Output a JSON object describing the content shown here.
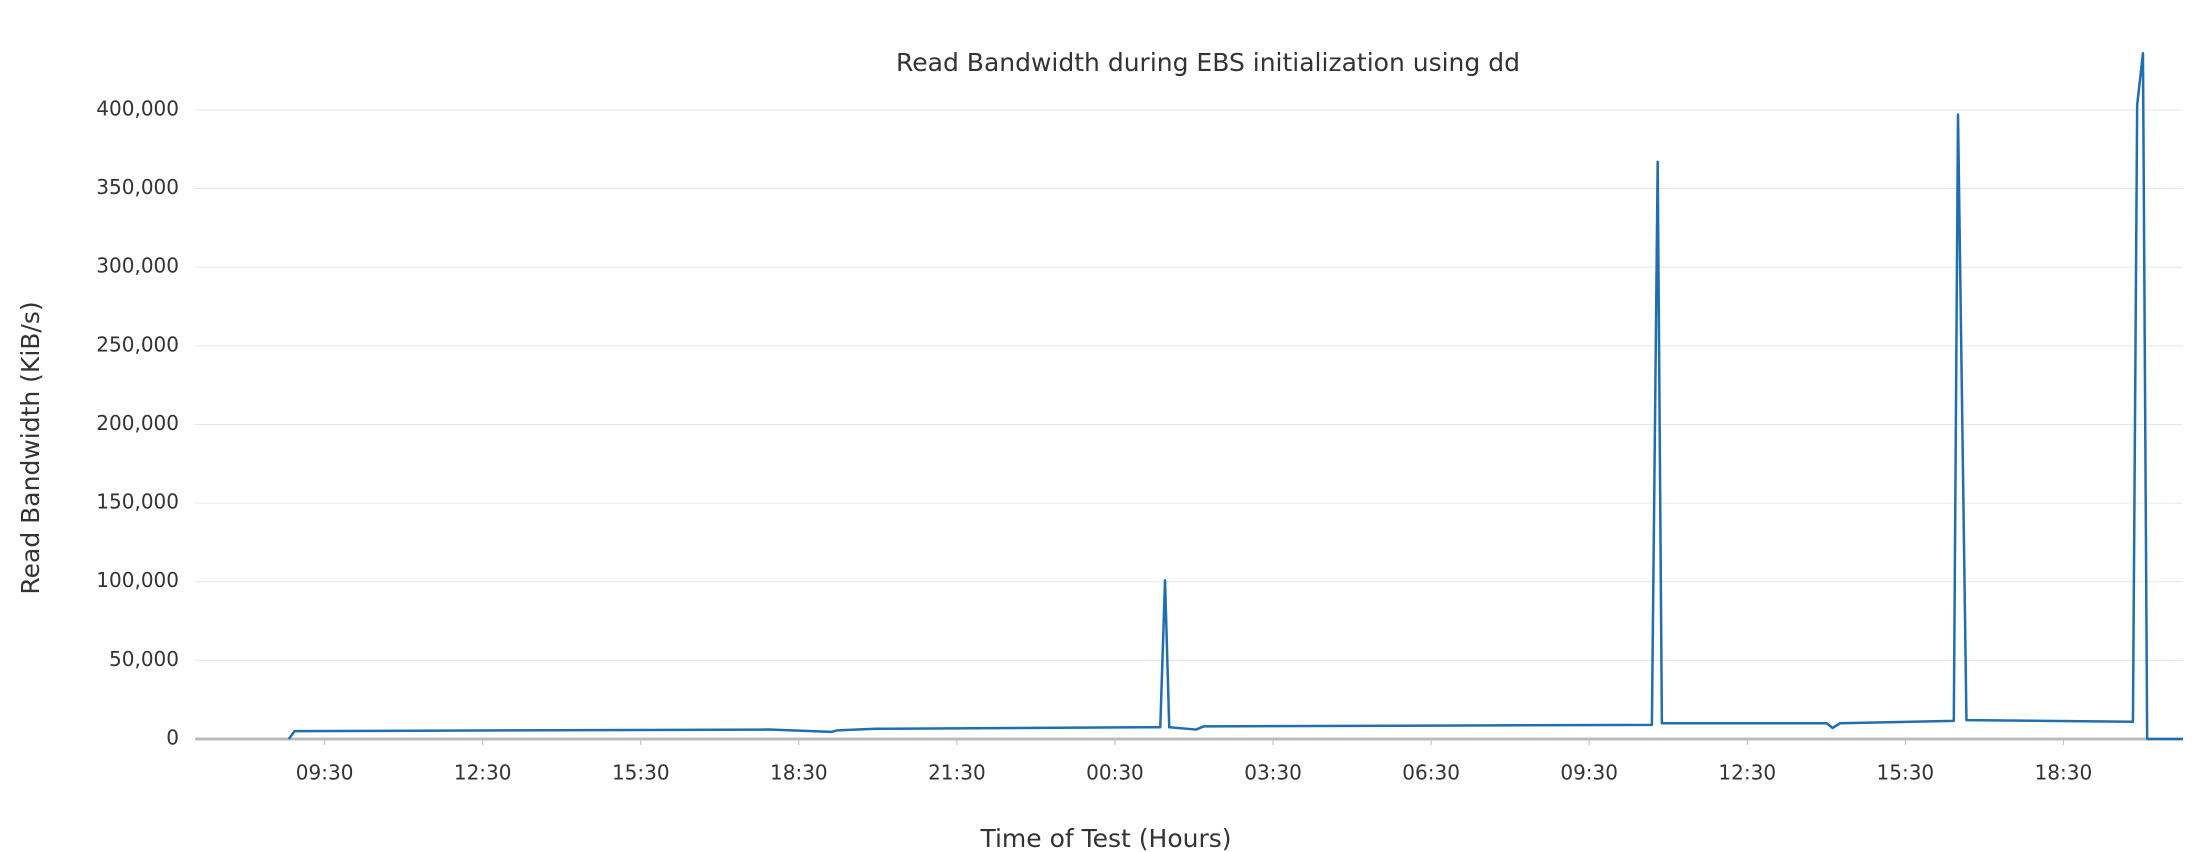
{
  "chart_data": {
    "type": "line",
    "title": "Read Bandwidth during EBS initialization using dd",
    "xlabel": "Time of Test (Hours)",
    "ylabel": "Read Bandwidth (KiB/s)",
    "color": "#1f6fb0",
    "x": [
      8.82,
      8.93,
      17.93,
      19.12,
      19.23,
      19.96,
      25.36,
      25.45,
      25.53,
      26.04,
      26.18,
      34.69,
      34.8,
      34.88,
      38.01,
      38.12,
      38.26,
      40.42,
      40.5,
      40.66,
      43.82,
      43.9,
      44.01,
      44.09,
      44.77
    ],
    "values": [
      0,
      5000,
      6000,
      4500,
      5500,
      6500,
      7500,
      101000,
      7500,
      6000,
      8000,
      9000,
      367000,
      10000,
      10000,
      7000,
      10000,
      11500,
      397000,
      12000,
      11000,
      403000,
      436000,
      0,
      0
    ],
    "xlim": [
      7.04,
      44.77
    ],
    "ylim": [
      0,
      440000
    ],
    "xticks": [
      {
        "value": 9.5,
        "label": "09:30"
      },
      {
        "value": 12.5,
        "label": "12:30"
      },
      {
        "value": 15.5,
        "label": "15:30"
      },
      {
        "value": 18.5,
        "label": "18:30"
      },
      {
        "value": 21.5,
        "label": "21:30"
      },
      {
        "value": 24.5,
        "label": "00:30"
      },
      {
        "value": 27.5,
        "label": "03:30"
      },
      {
        "value": 30.5,
        "label": "06:30"
      },
      {
        "value": 33.5,
        "label": "09:30"
      },
      {
        "value": 36.5,
        "label": "12:30"
      },
      {
        "value": 39.5,
        "label": "15:30"
      },
      {
        "value": 42.5,
        "label": "18:30"
      }
    ],
    "yticks": [
      0,
      {
        "value": 50000,
        "label": "50,000"
      },
      {
        "value": 100000,
        "label": "100,000"
      },
      {
        "value": 150000,
        "label": "150,000"
      },
      {
        "value": 200000,
        "label": "200,000"
      },
      {
        "value": 250000,
        "label": "250,000"
      },
      {
        "value": 300000,
        "label": "300,000"
      },
      {
        "value": 350000,
        "label": "350,000"
      },
      {
        "value": 400000,
        "label": "400,000"
      }
    ],
    "grid": true
  }
}
